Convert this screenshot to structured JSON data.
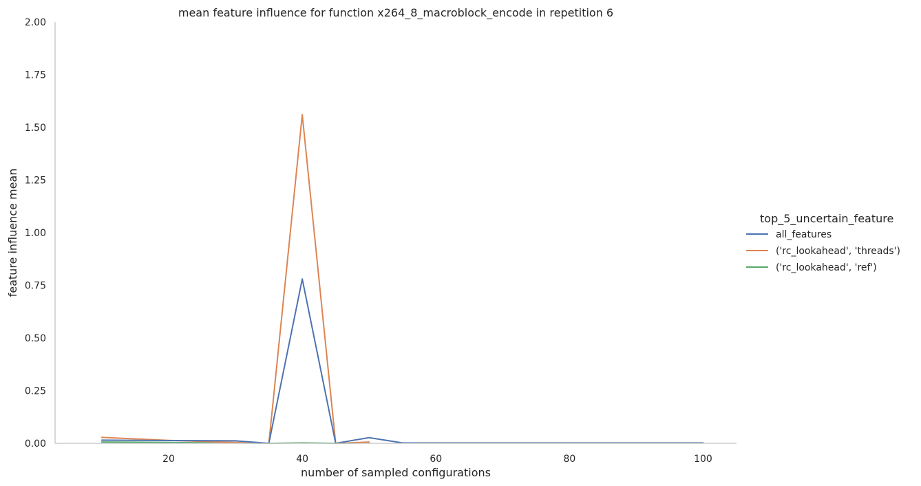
{
  "chart_data": {
    "type": "line",
    "title": "mean feature influence for function x264_8_macroblock_encode in repetition 6",
    "xlabel": "number of sampled configurations",
    "ylabel": "feature influence mean",
    "xlim": [
      3,
      105
    ],
    "ylim": [
      0,
      2
    ],
    "xticks": [
      20,
      40,
      60,
      80,
      100
    ],
    "yticks": [
      "0.00",
      "0.25",
      "0.50",
      "0.75",
      "1.00",
      "1.25",
      "1.50",
      "1.75",
      "2.00"
    ],
    "grid": false,
    "legend": {
      "title": "top_5_uncertain_feature",
      "placement": "right"
    },
    "series": [
      {
        "name": "all_features",
        "color": "#4c72b0",
        "x": [
          10,
          20,
          30,
          35,
          40,
          45,
          50,
          55,
          60,
          70,
          80,
          90,
          100
        ],
        "y": [
          0.015,
          0.013,
          0.012,
          0.0,
          0.78,
          0.0,
          0.027,
          0.002,
          0.002,
          0.002,
          0.002,
          0.002,
          0.002
        ]
      },
      {
        "name": "('rc_lookahead', 'threads')",
        "color": "#dd8452",
        "x": [
          10,
          20,
          30,
          35,
          40,
          45,
          50
        ],
        "y": [
          0.028,
          0.014,
          0.004,
          0.0,
          1.56,
          0.0,
          0.006
        ]
      },
      {
        "name": "('rc_lookahead', 'ref')",
        "color": "#55a868",
        "x": [
          10,
          20,
          30,
          35,
          40,
          45,
          50
        ],
        "y": [
          0.006,
          0.004,
          0.002,
          0.0,
          0.002,
          0.0,
          0.002
        ]
      }
    ]
  }
}
